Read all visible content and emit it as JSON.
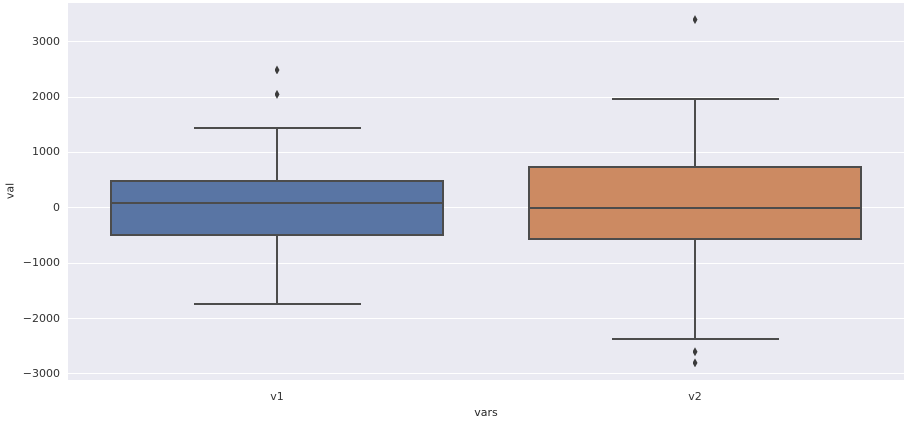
{
  "figure": {
    "background": "#ffffff",
    "plot_background": "#eaeaf2",
    "grid_color": "#ffffff",
    "edge_color": "#4c4c4c",
    "outlier_color": "#3b3b3b",
    "tick_text_color": "#333333"
  },
  "chart_data": {
    "type": "boxplot",
    "title": "",
    "xlabel": "vars",
    "ylabel": "val",
    "categories": [
      "v1",
      "v2"
    ],
    "ylim": [
      -3110,
      3700
    ],
    "grid": true,
    "y_ticks": [
      {
        "value": 3000,
        "label": "3000"
      },
      {
        "value": 2000,
        "label": "2000"
      },
      {
        "value": 1000,
        "label": "1000"
      },
      {
        "value": 0,
        "label": "0"
      },
      {
        "value": -1000,
        "label": "−1000"
      },
      {
        "value": -2000,
        "label": "−2000"
      },
      {
        "value": -3000,
        "label": "−3000"
      }
    ],
    "series": [
      {
        "name": "v1",
        "color": "#5975a4",
        "whisker_low": -1730,
        "q1": -500,
        "median": 85,
        "q3": 510,
        "whisker_high": 1450,
        "outliers": [
          2050,
          2490
        ]
      },
      {
        "name": "v2",
        "color": "#cc8a62",
        "whisker_low": -2370,
        "q1": -590,
        "median": -10,
        "q3": 750,
        "whisker_high": 1965,
        "outliers": [
          3400,
          -2600,
          -2800
        ]
      }
    ]
  }
}
